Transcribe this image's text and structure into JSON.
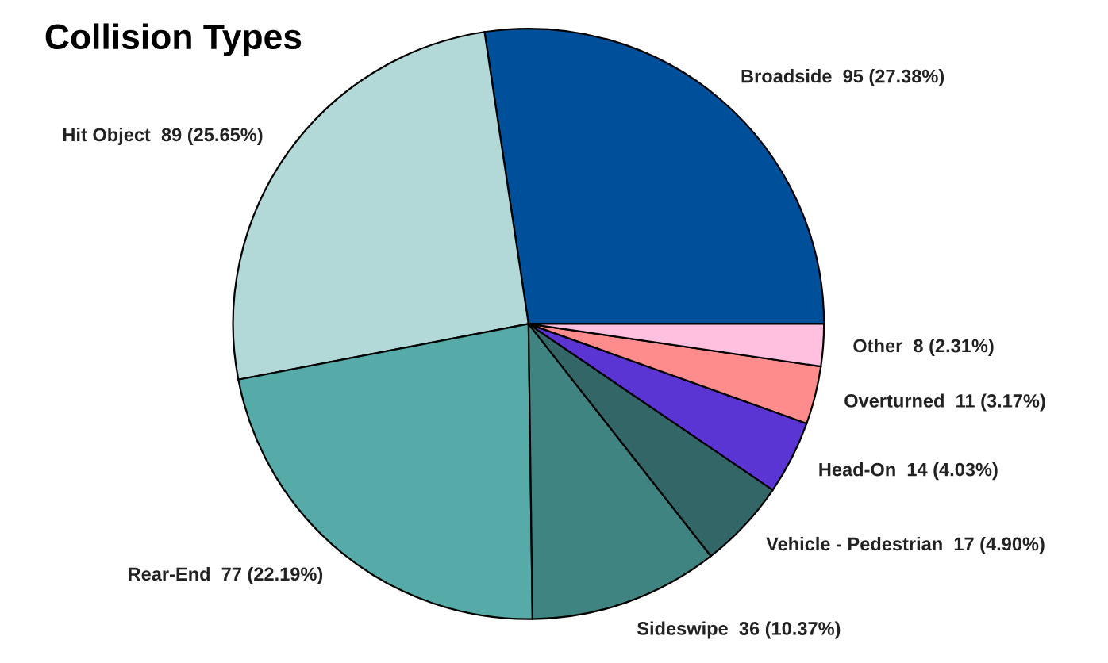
{
  "chart_data": {
    "type": "pie",
    "title": "Collision Types",
    "categories": [
      "Broadside",
      "Hit Object",
      "Rear-End",
      "Sideswipe",
      "Vehicle - Pedestrian",
      "Head-On",
      "Overturned",
      "Other"
    ],
    "values": [
      95,
      89,
      77,
      36,
      17,
      14,
      11,
      8
    ],
    "value_labels": [
      "95 (27.38%)",
      "89 (25.65%)",
      "77 (22.19%)",
      "36 (10.37%)",
      "17 (4.90%)",
      "14 (4.03%)",
      "11 (3.17%)",
      "8 (2.31%)"
    ],
    "colors": [
      "#004f9a",
      "#b2d8d8",
      "#56aba8",
      "#3f8480",
      "#336666",
      "#5b34d4",
      "#ff8c8c",
      "#ffbfdf"
    ],
    "legend": false
  }
}
